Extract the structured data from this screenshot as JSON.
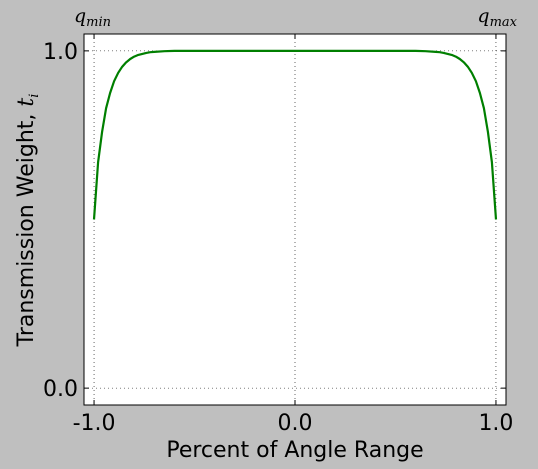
{
  "chart_data": {
    "type": "line",
    "xlabel": "Percent of Angle Range",
    "ylabel": "Transmission Weight, ",
    "ylabel_symbol": "t",
    "ylabel_sub": "i",
    "xlim": [
      -1.05,
      1.05
    ],
    "ylim": [
      -0.05,
      1.05
    ],
    "x_ticks": [
      -1.0,
      0.0,
      1.0
    ],
    "x_tick_labels": [
      "-1.0",
      "0.0",
      "1.0"
    ],
    "y_ticks": [
      0.0,
      1.0
    ],
    "y_tick_labels": [
      "0.0",
      "1.0"
    ],
    "grid": true,
    "corner_labels": [
      {
        "symbol": "q",
        "sub": "min"
      },
      {
        "symbol": "q",
        "sub": "max"
      }
    ],
    "series": [
      {
        "color": "#007f00",
        "x": [
          -1.0,
          -0.98,
          -0.96,
          -0.94,
          -0.92,
          -0.9,
          -0.88,
          -0.86,
          -0.84,
          -0.82,
          -0.8,
          -0.78,
          -0.76,
          -0.74,
          -0.72,
          -0.7,
          -0.65,
          -0.6,
          -0.5,
          -0.3,
          0.0,
          0.3,
          0.5,
          0.6,
          0.65,
          0.7,
          0.72,
          0.74,
          0.76,
          0.78,
          0.8,
          0.82,
          0.84,
          0.86,
          0.88,
          0.9,
          0.92,
          0.94,
          0.96,
          0.98,
          1.0
        ],
        "y": [
          0.5,
          0.67,
          0.76,
          0.83,
          0.875,
          0.91,
          0.935,
          0.953,
          0.966,
          0.976,
          0.983,
          0.988,
          0.991,
          0.994,
          0.996,
          0.997,
          0.999,
          1.0,
          1.0,
          1.0,
          1.0,
          1.0,
          1.0,
          1.0,
          0.999,
          0.997,
          0.996,
          0.994,
          0.991,
          0.988,
          0.983,
          0.976,
          0.966,
          0.953,
          0.935,
          0.91,
          0.875,
          0.83,
          0.76,
          0.67,
          0.5
        ]
      }
    ]
  }
}
